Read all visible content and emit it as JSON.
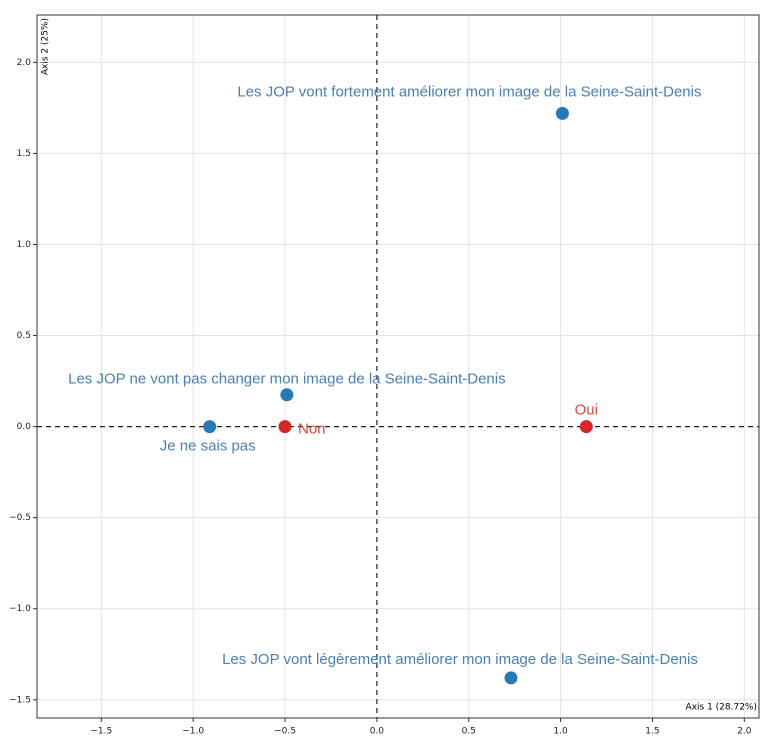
{
  "chart_data": {
    "type": "scatter",
    "xlabel": "Axis 1 (28.72%)",
    "ylabel": "Axis 2 (25%)",
    "xlim": [
      -1.85,
      2.08
    ],
    "ylim": [
      -1.6,
      2.26
    ],
    "xticks": [
      {
        "value": -1.5,
        "label": "−1.5"
      },
      {
        "value": -1,
        "label": "−1.0"
      },
      {
        "value": -0.5,
        "label": "−0.5"
      },
      {
        "value": 0,
        "label": "0.0"
      },
      {
        "value": 0.5,
        "label": "0.5"
      },
      {
        "value": 1,
        "label": "1.0"
      },
      {
        "value": 1.5,
        "label": "1.5"
      },
      {
        "value": 2,
        "label": "2.0"
      }
    ],
    "yticks": [
      {
        "value": -1.5,
        "label": "−1.5"
      },
      {
        "value": -1,
        "label": "−1.0"
      },
      {
        "value": -0.5,
        "label": "−0.5"
      },
      {
        "value": 0,
        "label": "0.0"
      },
      {
        "value": 0.5,
        "label": "0.5"
      },
      {
        "value": 1,
        "label": "1.0"
      },
      {
        "value": 1.5,
        "label": "1.5"
      },
      {
        "value": 2,
        "label": "2.0"
      }
    ],
    "grid": true,
    "series": [
      {
        "color": "#2878b5",
        "label_color": "#4a7fb5",
        "labels": [
          "Les JOP vont fortement améliorer mon image de la Seine-Saint-Denis",
          "Les JOP ne vont pas changer mon image de la Seine-Saint-Denis",
          "Je ne sais pas",
          "Les JOP vont légèrement améliorer mon image de la Seine-Saint-Denis"
        ],
        "x": [
          1.01,
          -0.49,
          -0.91,
          0.73
        ],
        "values": [
          1.72,
          0.175,
          0,
          -1.38
        ]
      },
      {
        "color": "#d62728",
        "label_color": "#d9463f",
        "labels": [
          "Non",
          "Oui"
        ],
        "x": [
          -0.5,
          1.14
        ],
        "values": [
          0,
          0
        ]
      }
    ]
  }
}
